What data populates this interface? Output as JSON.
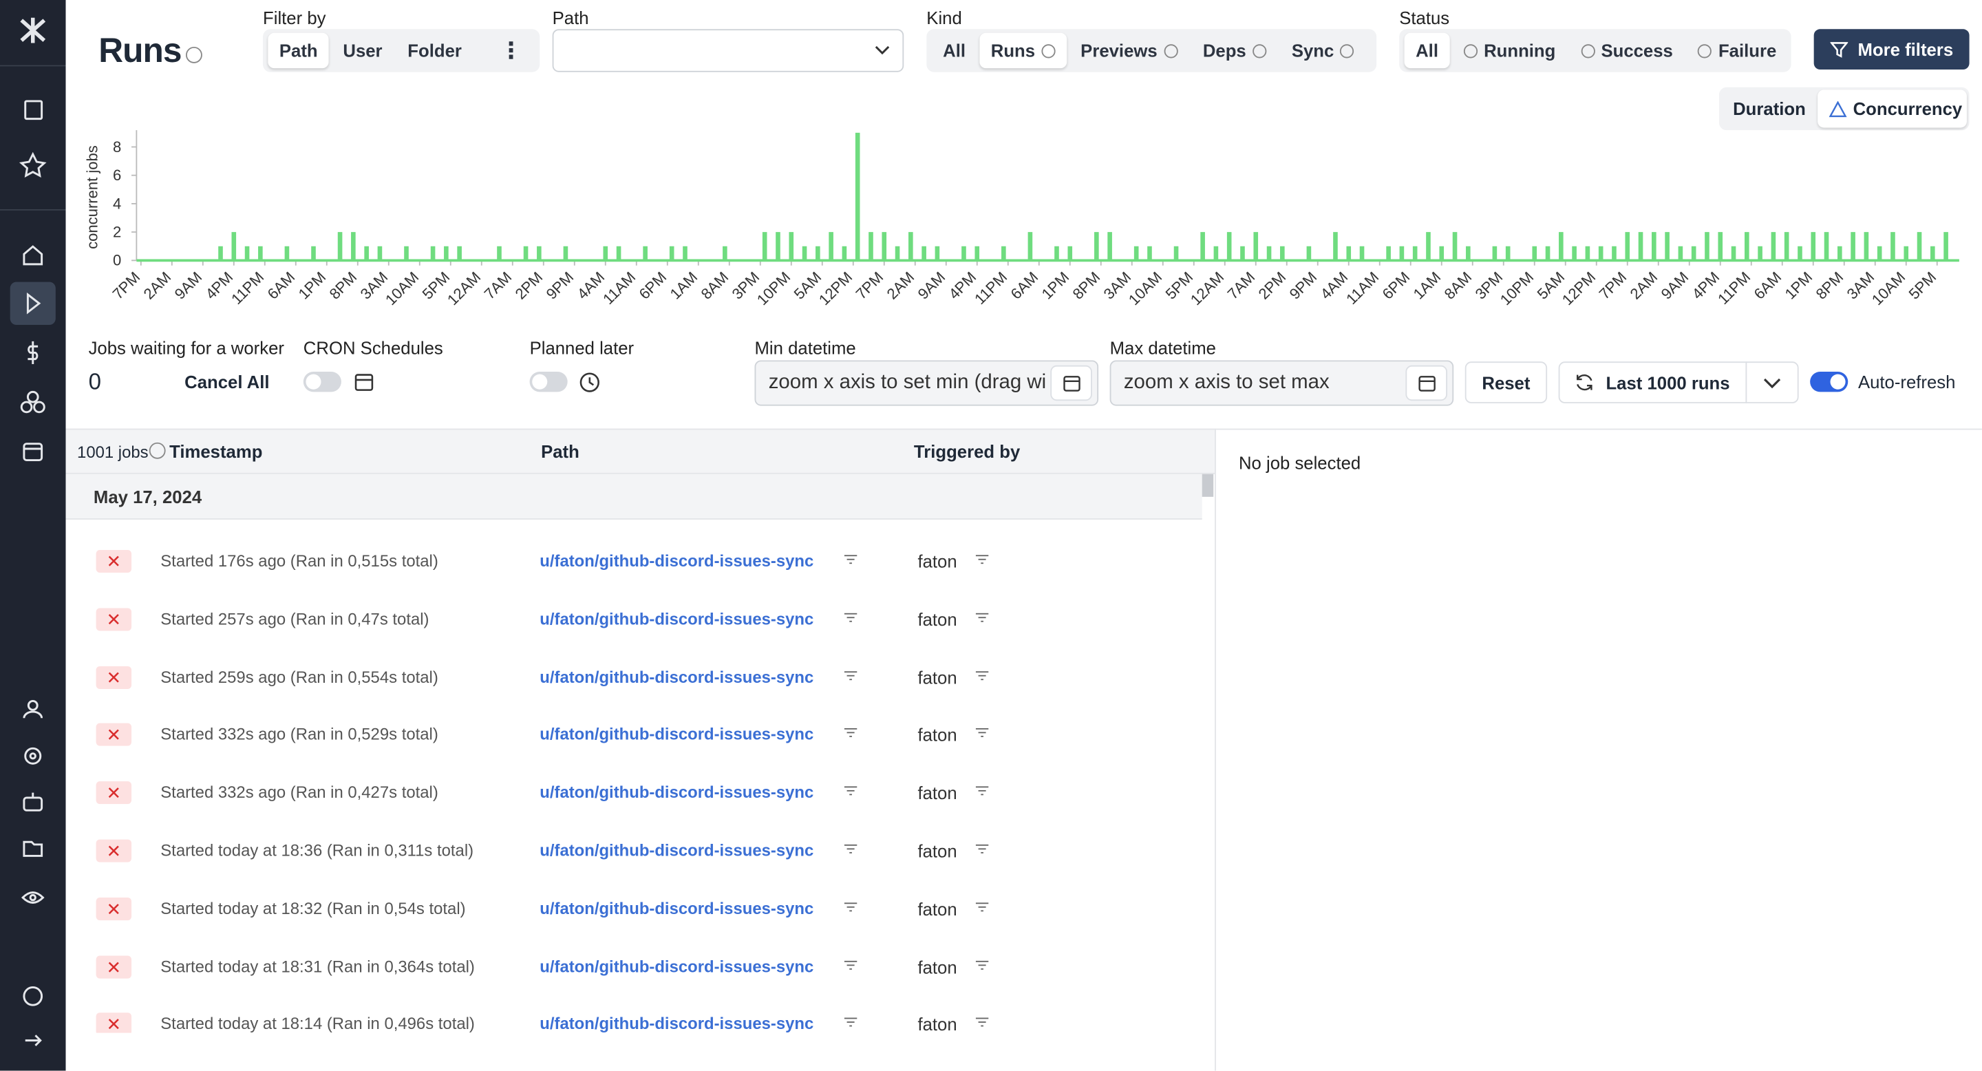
{
  "header": {
    "title": "Runs",
    "filter_by": {
      "label": "Filter by",
      "options": [
        "Path",
        "User",
        "Folder"
      ]
    },
    "path": {
      "label": "Path"
    },
    "kind": {
      "label": "Kind",
      "options": [
        "All",
        "Runs",
        "Previews",
        "Deps",
        "Sync"
      ]
    },
    "status": {
      "label": "Status",
      "options": [
        "All",
        "Running",
        "Success",
        "Failure"
      ]
    },
    "more_filters": "More filters"
  },
  "chart_toggle": [
    "Duration",
    "Concurrency"
  ],
  "chart_data": {
    "type": "bar",
    "y_label": "concurrent jobs",
    "color": "#6fdc7f",
    "xlim": [
      -1,
      411
    ],
    "ylim": [
      0,
      9
    ],
    "yticks": [
      0,
      2,
      4,
      6,
      8
    ],
    "xticks": [
      {
        "value": 0,
        "label": "7PM"
      },
      {
        "value": 7,
        "label": "2AM"
      },
      {
        "value": 14,
        "label": "9AM"
      },
      {
        "value": 21,
        "label": "4PM"
      },
      {
        "value": 28,
        "label": "11PM"
      },
      {
        "value": 35,
        "label": "6AM"
      },
      {
        "value": 42,
        "label": "1PM"
      },
      {
        "value": 49,
        "label": "8PM"
      },
      {
        "value": 56,
        "label": "3AM"
      },
      {
        "value": 63,
        "label": "10AM"
      },
      {
        "value": 70,
        "label": "5PM"
      },
      {
        "value": 77,
        "label": "12AM"
      },
      {
        "value": 84,
        "label": "7AM"
      },
      {
        "value": 91,
        "label": "2PM"
      },
      {
        "value": 98,
        "label": "9PM"
      },
      {
        "value": 105,
        "label": "4AM"
      },
      {
        "value": 112,
        "label": "11AM"
      },
      {
        "value": 119,
        "label": "6PM"
      },
      {
        "value": 126,
        "label": "1AM"
      },
      {
        "value": 133,
        "label": "8AM"
      },
      {
        "value": 140,
        "label": "3PM"
      },
      {
        "value": 147,
        "label": "10PM"
      },
      {
        "value": 154,
        "label": "5AM"
      },
      {
        "value": 161,
        "label": "12PM"
      },
      {
        "value": 168,
        "label": "7PM"
      },
      {
        "value": 175,
        "label": "2AM"
      },
      {
        "value": 182,
        "label": "9AM"
      },
      {
        "value": 189,
        "label": "4PM"
      },
      {
        "value": 196,
        "label": "11PM"
      },
      {
        "value": 203,
        "label": "6AM"
      },
      {
        "value": 210,
        "label": "1PM"
      },
      {
        "value": 217,
        "label": "8PM"
      },
      {
        "value": 224,
        "label": "3AM"
      },
      {
        "value": 231,
        "label": "10AM"
      },
      {
        "value": 238,
        "label": "5PM"
      },
      {
        "value": 245,
        "label": "12AM"
      },
      {
        "value": 252,
        "label": "7AM"
      },
      {
        "value": 259,
        "label": "2PM"
      },
      {
        "value": 266,
        "label": "9PM"
      },
      {
        "value": 273,
        "label": "4AM"
      },
      {
        "value": 280,
        "label": "11AM"
      },
      {
        "value": 287,
        "label": "6PM"
      },
      {
        "value": 294,
        "label": "1AM"
      },
      {
        "value": 301,
        "label": "8AM"
      },
      {
        "value": 308,
        "label": "3PM"
      },
      {
        "value": 315,
        "label": "10PM"
      },
      {
        "value": 322,
        "label": "5AM"
      },
      {
        "value": 329,
        "label": "12PM"
      },
      {
        "value": 336,
        "label": "7PM"
      },
      {
        "value": 343,
        "label": "2AM"
      },
      {
        "value": 350,
        "label": "9AM"
      },
      {
        "value": 357,
        "label": "4PM"
      },
      {
        "value": 364,
        "label": "11PM"
      },
      {
        "value": 371,
        "label": "6AM"
      },
      {
        "value": 378,
        "label": "1PM"
      },
      {
        "value": 385,
        "label": "8PM"
      },
      {
        "value": 392,
        "label": "3AM"
      },
      {
        "value": 399,
        "label": "10AM"
      },
      {
        "value": 406,
        "label": "5PM"
      }
    ],
    "x": [
      0,
      3,
      6,
      9,
      12,
      15,
      18,
      21,
      24,
      27,
      30,
      33,
      36,
      39,
      42,
      45,
      48,
      51,
      54,
      57,
      60,
      63,
      66,
      69,
      72,
      75,
      78,
      81,
      84,
      87,
      90,
      93,
      96,
      99,
      102,
      105,
      108,
      111,
      114,
      117,
      120,
      123,
      126,
      129,
      132,
      135,
      138,
      141,
      144,
      147,
      150,
      153,
      156,
      159,
      162,
      165,
      168,
      171,
      174,
      177,
      180,
      183,
      186,
      189,
      192,
      195,
      198,
      201,
      204,
      207,
      210,
      213,
      216,
      219,
      222,
      225,
      228,
      231,
      234,
      237,
      240,
      243,
      246,
      249,
      252,
      255,
      258,
      261,
      264,
      267,
      270,
      273,
      276,
      279,
      282,
      285,
      288,
      291,
      294,
      297,
      300,
      303,
      306,
      309,
      312,
      315,
      318,
      321,
      324,
      327,
      330,
      333,
      336,
      339,
      342,
      345,
      348,
      351,
      354,
      357,
      360,
      363,
      366,
      369,
      372,
      375,
      378,
      381,
      384,
      387,
      390,
      393,
      396,
      399,
      402,
      405,
      408
    ],
    "values": [
      0,
      0,
      0,
      0,
      0,
      0,
      1,
      2,
      1,
      1,
      0,
      1,
      0,
      1,
      0,
      2,
      2,
      1,
      1,
      0,
      1,
      0,
      1,
      1,
      1,
      0,
      0,
      1,
      0,
      1,
      1,
      0,
      1,
      0,
      0,
      1,
      1,
      0,
      1,
      0,
      1,
      1,
      0,
      0,
      1,
      0,
      0,
      2,
      2,
      2,
      1,
      1,
      2,
      1,
      9,
      2,
      2,
      1,
      2,
      1,
      1,
      0,
      1,
      1,
      0,
      1,
      0,
      2,
      0,
      1,
      1,
      0,
      2,
      2,
      0,
      1,
      1,
      0,
      1,
      0,
      2,
      1,
      2,
      1,
      2,
      1,
      1,
      0,
      1,
      0,
      2,
      1,
      1,
      0,
      1,
      1,
      1,
      2,
      1,
      2,
      1,
      0,
      1,
      1,
      0,
      1,
      1,
      2,
      1,
      1,
      1,
      1,
      2,
      2,
      2,
      2,
      1,
      1,
      2,
      2,
      1,
      2,
      1,
      2,
      2,
      1,
      2,
      2,
      1,
      2,
      2,
      1,
      2,
      1,
      2,
      1,
      2
    ]
  },
  "controls": {
    "jobs_waiting": {
      "label": "Jobs waiting for a worker",
      "value": "0",
      "action": "Cancel All"
    },
    "cron": "CRON Schedules",
    "planned": "Planned later",
    "min": {
      "label": "Min datetime",
      "placeholder": "zoom x axis to set min (drag wi"
    },
    "max": {
      "label": "Max datetime",
      "placeholder": "zoom x axis to set max"
    },
    "reset": "Reset",
    "last_runs": "Last 1000 runs",
    "auto_refresh": "Auto-refresh"
  },
  "table": {
    "count": "1001 jobs",
    "columns": [
      "Timestamp",
      "Path",
      "Triggered by"
    ],
    "group": "May 17, 2024",
    "rows": [
      {
        "timestamp": "Started 176s ago (Ran in 0,515s total)",
        "path": "u/faton/github-discord-issues-sync",
        "triggered_by": "faton"
      },
      {
        "timestamp": "Started 257s ago (Ran in 0,47s total)",
        "path": "u/faton/github-discord-issues-sync",
        "triggered_by": "faton"
      },
      {
        "timestamp": "Started 259s ago (Ran in 0,554s total)",
        "path": "u/faton/github-discord-issues-sync",
        "triggered_by": "faton"
      },
      {
        "timestamp": "Started 332s ago (Ran in 0,529s total)",
        "path": "u/faton/github-discord-issues-sync",
        "triggered_by": "faton"
      },
      {
        "timestamp": "Started 332s ago (Ran in 0,427s total)",
        "path": "u/faton/github-discord-issues-sync",
        "triggered_by": "faton"
      },
      {
        "timestamp": "Started today at 18:36 (Ran in 0,311s total)",
        "path": "u/faton/github-discord-issues-sync",
        "triggered_by": "faton"
      },
      {
        "timestamp": "Started today at 18:32 (Ran in 0,54s total)",
        "path": "u/faton/github-discord-issues-sync",
        "triggered_by": "faton"
      },
      {
        "timestamp": "Started today at 18:31 (Ran in 0,364s total)",
        "path": "u/faton/github-discord-issues-sync",
        "triggered_by": "faton"
      },
      {
        "timestamp": "Started today at 18:14 (Ran in 0,496s total)",
        "path": "u/faton/github-discord-issues-sync",
        "triggered_by": "faton"
      }
    ]
  },
  "detail": "No job selected"
}
